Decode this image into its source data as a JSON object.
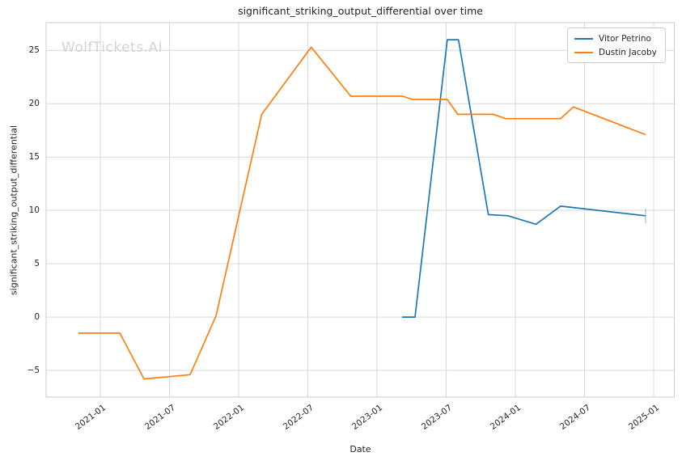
{
  "watermark": "WolfTickets.AI",
  "chart_data": {
    "type": "line",
    "title": "significant_striking_output_differential over time",
    "xlabel": "Date",
    "ylabel": "significant_striking_output_differential",
    "grid": true,
    "legend_position": "upper right",
    "x_tick_labels": [
      "2021-01",
      "2021-07",
      "2022-01",
      "2022-07",
      "2023-01",
      "2023-07",
      "2024-01",
      "2024-07",
      "2025-01"
    ],
    "y_ticks": [
      -5,
      0,
      5,
      10,
      15,
      20,
      25
    ],
    "y_tick_labels": [
      "−5",
      "0",
      "5",
      "10",
      "15",
      "20",
      "25"
    ],
    "ylim": [
      -7.5,
      27.6
    ],
    "xlim": [
      "2020-08-10",
      "2025-02-25"
    ],
    "colors": {
      "vitor_petrino": "#1f77b4",
      "dustin_jacoby": "#ff7f0e",
      "grid": "#d9d9d9",
      "spine": "#cccccc"
    },
    "series": [
      {
        "name": "Vitor Petrino",
        "color": "#1f77b4",
        "x": [
          "2023-03-06",
          "2023-04-10",
          "2023-07-04",
          "2023-08-03",
          "2023-10-21",
          "2023-12-12",
          "2024-02-25",
          "2024-04-29",
          "2024-12-10"
        ],
        "y": [
          0.0,
          0.0,
          26.0,
          26.0,
          9.6,
          9.5,
          8.7,
          10.4,
          9.5
        ],
        "end_cap": {
          "x": "2024-12-10",
          "y_low": 8.8,
          "y_high": 10.2
        }
      },
      {
        "name": "Dustin Jacoby",
        "color": "#ff7f0e",
        "x": [
          "2020-11-04",
          "2021-02-22",
          "2021-04-25",
          "2021-08-25",
          "2021-11-02",
          "2022-03-01",
          "2022-07-10",
          "2022-10-23",
          "2023-03-08",
          "2023-04-03",
          "2023-07-04",
          "2023-08-01",
          "2023-11-04",
          "2023-12-06",
          "2024-04-29",
          "2024-06-02",
          "2024-12-10"
        ],
        "y": [
          -1.5,
          -1.5,
          -5.8,
          -5.4,
          0.1,
          19.0,
          25.3,
          20.7,
          20.7,
          20.4,
          20.4,
          19.0,
          19.0,
          18.6,
          18.6,
          19.7,
          17.1
        ]
      }
    ]
  }
}
